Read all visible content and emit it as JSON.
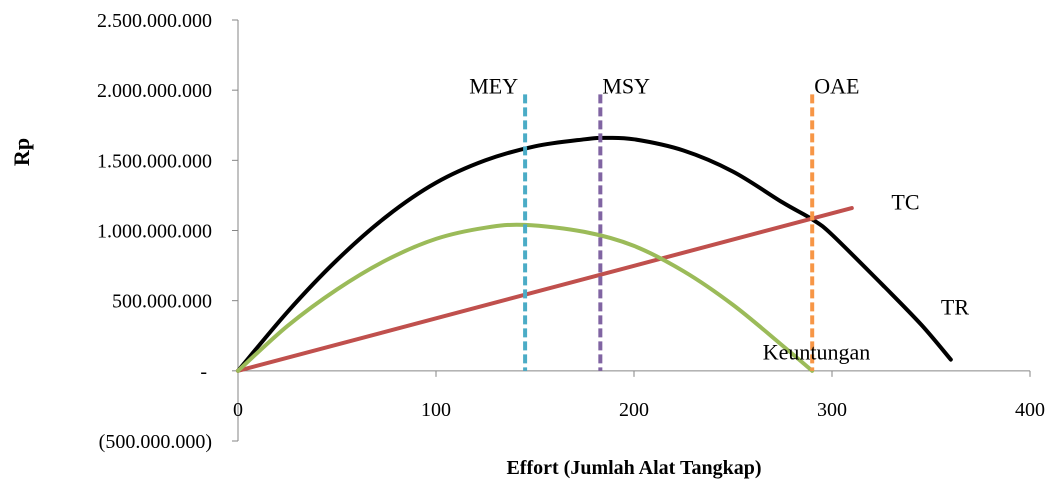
{
  "chart_data": {
    "type": "line",
    "title": "",
    "xlabel": "Effort (Jumlah Alat Tangkap)",
    "ylabel": "Rp",
    "xlim": [
      0,
      400
    ],
    "ylim": [
      -500000000,
      2500000000
    ],
    "x_ticks": [
      0,
      100,
      200,
      300,
      400
    ],
    "x_tick_labels": [
      "0",
      "100",
      "200",
      "300",
      "400"
    ],
    "y_ticks": [
      -500000000,
      0,
      500000000,
      1000000000,
      1500000000,
      2000000000,
      2500000000
    ],
    "y_tick_labels": [
      "(500.000.000)",
      "-",
      "500.000.000",
      "1.000.000.000",
      "1.500.000.000",
      "2.000.000.000",
      "2.500.000.000"
    ],
    "grid": false,
    "legend": "none",
    "series": [
      {
        "name": "TR",
        "color": "#000000",
        "x": [
          0,
          25,
          50,
          75,
          100,
          125,
          150,
          175,
          185,
          200,
          225,
          250,
          275,
          290,
          300,
          325,
          345,
          360
        ],
        "y": [
          0,
          420000000,
          790000000,
          1100000000,
          1340000000,
          1500000000,
          1600000000,
          1650000000,
          1660000000,
          1650000000,
          1570000000,
          1420000000,
          1200000000,
          1080000000,
          970000000,
          620000000,
          330000000,
          80000000
        ]
      },
      {
        "name": "TC",
        "color": "#c0504d",
        "x": [
          0,
          310
        ],
        "y": [
          0,
          1160000000
        ]
      },
      {
        "name": "Keuntungan",
        "color": "#9bbb59",
        "x": [
          0,
          25,
          50,
          75,
          100,
          125,
          145,
          175,
          200,
          225,
          250,
          275,
          290
        ],
        "y": [
          0,
          320000000,
          580000000,
          790000000,
          940000000,
          1020000000,
          1040000000,
          990000000,
          890000000,
          710000000,
          470000000,
          180000000,
          0
        ]
      }
    ],
    "reference_lines": [
      {
        "label": "MEY",
        "x": 145,
        "y_top": 1970000000,
        "color": "#4bacc6"
      },
      {
        "label": "MSY",
        "x": 183,
        "y_top": 1970000000,
        "color": "#8064a2"
      },
      {
        "label": "OAE",
        "x": 290,
        "y_top": 1970000000,
        "color": "#f79646"
      }
    ],
    "curve_labels": [
      {
        "text": "TC",
        "at_x": 330,
        "at_y": 1150000000
      },
      {
        "text": "TR",
        "at_x": 355,
        "at_y": 400000000
      },
      {
        "text": "Keuntungan",
        "at_x": 265,
        "at_y": 80000000
      }
    ]
  }
}
